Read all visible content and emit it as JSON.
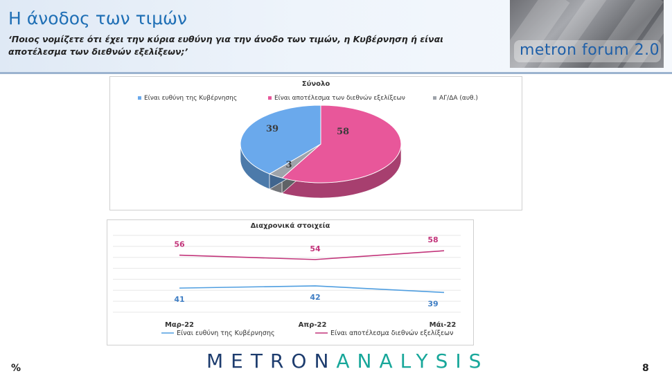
{
  "header": {
    "title": "Η άνοδος των τιμών",
    "question": "‘Ποιος νομίζετε ότι έχει την κύρια ευθύνη για την άνοδο των τιμών, η Κυβέρνηση ή είναι αποτέλεσμα των διεθνών εξελίξεων;’",
    "forum_label": "metron forum 2.0"
  },
  "footer": {
    "logo_part1": "METRON",
    "logo_part2": "ANALYSIS",
    "percent_sign": "%",
    "page_number": "8"
  },
  "chart_data": [
    {
      "type": "pie",
      "title": "Σύνολο",
      "legend": [
        "Είναι ευθύνη της Κυβέρνησης",
        "Είναι αποτέλεσμα των διεθνών εξελίξεων",
        "ΑΓ/ΔΑ (αυθ.)"
      ],
      "legend_position": "top",
      "slices": [
        {
          "label": "Είναι ευθύνη της Κυβέρνησης",
          "value": 39,
          "color": "#6aa9ec"
        },
        {
          "label": "Είναι αποτέλεσμα των διεθνών εξελίξεων",
          "value": 58,
          "color": "#e8579a"
        },
        {
          "label": "ΑΓ/ΔΑ (αυθ.)",
          "value": 3,
          "color": "#9ea3aa"
        }
      ],
      "data_labels": [
        "39",
        "58",
        "3"
      ]
    },
    {
      "type": "line",
      "title": "Διαχρονικά στοιχεία",
      "categories": [
        "Μαρ-22",
        "Απρ-22",
        "Μάι-22"
      ],
      "series": [
        {
          "name": "Είναι ευθύνη της Κυβέρνησης",
          "values": [
            41,
            42,
            39
          ],
          "color": "#4f9ee0"
        },
        {
          "name": "Είναι αποτέλεσμα διεθνών εξελίξεων",
          "values": [
            56,
            54,
            58
          ],
          "color": "#c2347a"
        }
      ],
      "ylim": [
        30,
        65
      ],
      "grid": true,
      "legend_position": "bottom"
    }
  ]
}
